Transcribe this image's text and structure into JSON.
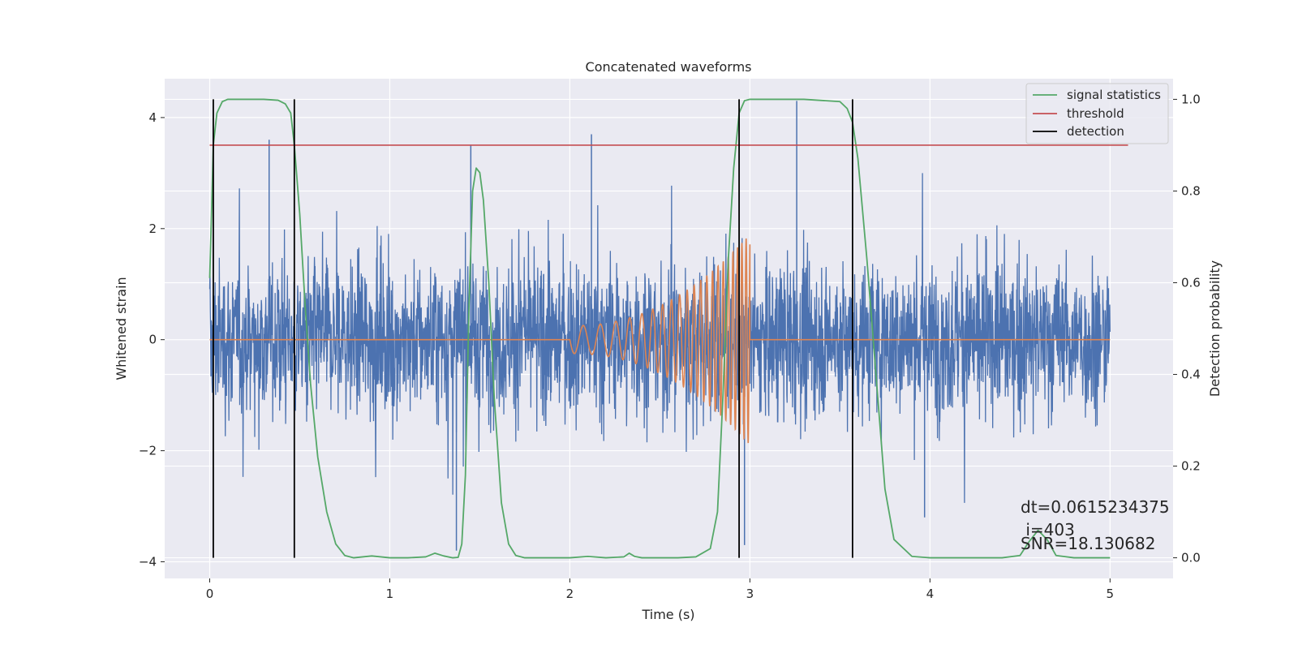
{
  "chart_data": {
    "type": "line",
    "title": "Concatenated waveforms",
    "xlabel": "Time (s)",
    "ylabel": "Whitened strain",
    "y2label": "Detection probability",
    "xlim": [
      -0.25,
      5.35
    ],
    "ylim": [
      -4.3,
      4.7
    ],
    "y2lim": [
      -0.045,
      1.045
    ],
    "xticks": [
      0,
      1,
      2,
      3,
      4,
      5
    ],
    "yticks": [
      -4,
      -2,
      0,
      2,
      4
    ],
    "y2ticks": [
      0.0,
      0.2,
      0.4,
      0.6,
      0.8,
      1.0
    ],
    "grid": true,
    "legend_position": "top-right",
    "colors": {
      "background": "#eaeaf2",
      "strain": "#4c72b0",
      "template": "#dd8452",
      "signal_statistics": "#55a868",
      "threshold": "#c44e52",
      "detection": "#000000",
      "grid": "#ffffff"
    },
    "series": [
      {
        "name": "signal statistics",
        "axis": "right",
        "x": [
          0.0,
          0.01,
          0.02,
          0.04,
          0.07,
          0.1,
          0.2,
          0.3,
          0.38,
          0.42,
          0.45,
          0.47,
          0.5,
          0.53,
          0.56,
          0.6,
          0.65,
          0.7,
          0.75,
          0.8,
          0.9,
          1.0,
          1.1,
          1.2,
          1.25,
          1.3,
          1.35,
          1.38,
          1.4,
          1.42,
          1.44,
          1.46,
          1.48,
          1.5,
          1.52,
          1.55,
          1.58,
          1.62,
          1.66,
          1.7,
          1.75,
          1.8,
          1.9,
          2.0,
          2.1,
          2.2,
          2.3,
          2.33,
          2.36,
          2.4,
          2.5,
          2.6,
          2.7,
          2.78,
          2.82,
          2.85,
          2.88,
          2.91,
          2.94,
          2.97,
          3.0,
          3.05,
          3.1,
          3.3,
          3.5,
          3.54,
          3.57,
          3.6,
          3.65,
          3.7,
          3.75,
          3.8,
          3.9,
          4.0,
          4.2,
          4.4,
          4.5,
          4.55,
          4.6,
          4.65,
          4.7,
          4.8,
          4.9,
          5.0
        ],
        "values": [
          0.61,
          0.75,
          0.9,
          0.97,
          0.995,
          1.0,
          1.0,
          1.0,
          0.998,
          0.99,
          0.97,
          0.9,
          0.75,
          0.55,
          0.38,
          0.22,
          0.1,
          0.03,
          0.005,
          0.0,
          0.004,
          0.0,
          0.0,
          0.002,
          0.01,
          0.004,
          0.0,
          0.001,
          0.03,
          0.18,
          0.55,
          0.8,
          0.85,
          0.84,
          0.78,
          0.6,
          0.35,
          0.12,
          0.03,
          0.005,
          0.0,
          0.0,
          0.0,
          0.0,
          0.003,
          0.0,
          0.002,
          0.01,
          0.003,
          0.0,
          0.0,
          0.0,
          0.002,
          0.02,
          0.1,
          0.35,
          0.65,
          0.85,
          0.97,
          0.997,
          1.0,
          1.0,
          1.0,
          1.0,
          0.995,
          0.98,
          0.95,
          0.87,
          0.65,
          0.4,
          0.15,
          0.04,
          0.003,
          0.0,
          0.0,
          0.0,
          0.005,
          0.035,
          0.06,
          0.04,
          0.005,
          0.0,
          0.0,
          0.0
        ]
      },
      {
        "name": "threshold",
        "axis": "right",
        "x": [
          0.0,
          5.1
        ],
        "values": [
          0.9,
          0.9
        ]
      },
      {
        "name": "detection",
        "axis": "right",
        "x_positions": [
          0.02,
          0.47,
          2.94,
          3.57
        ],
        "y_range": [
          0.0,
          1.0
        ]
      },
      {
        "axis": "left",
        "x_range": [
          0.0,
          3.0
        ],
        "chirp_start": 2.0,
        "chirp_end": 3.0,
        "amplitude_start": 0.25,
        "amplitude_end": 1.9,
        "frequency_start": 10,
        "frequency_end": 45
      },
      {
        "axis": "left",
        "x_range": [
          0.0,
          5.0
        ],
        "noise_rms": 0.95,
        "y_min": -3.8,
        "y_max": 4.3,
        "peak_points": [
          [
            0.33,
            3.6
          ],
          [
            1.37,
            -3.8
          ],
          [
            1.45,
            3.5
          ],
          [
            2.12,
            3.7
          ],
          [
            3.26,
            4.3
          ],
          [
            2.97,
            -3.7
          ],
          [
            3.97,
            -3.2
          ]
        ]
      }
    ],
    "annotations": [
      "dt=0.0615234375",
      " i=403",
      "SNR=18.130682"
    ]
  }
}
